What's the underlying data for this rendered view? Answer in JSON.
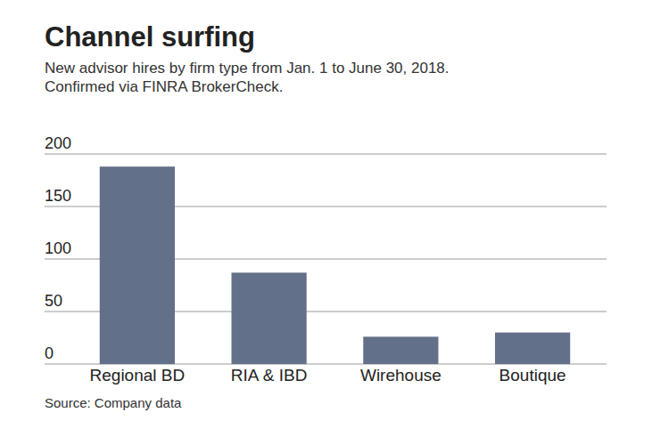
{
  "chart_data": {
    "type": "bar",
    "title": "Channel surfing",
    "subtitle": "New advisor hires by firm type from Jan. 1 to June 30, 2018. Confirmed via FINRA BrokerCheck.",
    "source": "Source: Company data",
    "categories": [
      "Regional BD",
      "RIA & IBD",
      "Wirehouse",
      "Boutique"
    ],
    "values": [
      188,
      87,
      26,
      30
    ],
    "color": "#637089",
    "ylim": [
      0,
      200
    ],
    "yticks": [
      0,
      50,
      100,
      150,
      200
    ],
    "grid": true
  }
}
